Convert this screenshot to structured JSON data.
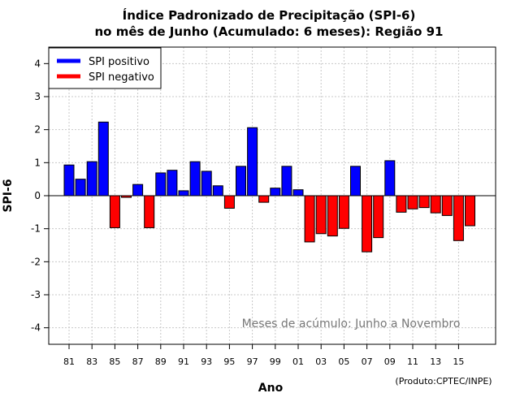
{
  "chart_data": {
    "type": "bar",
    "title_line1": "Índice Padronizado de Precipitação (SPI-6)",
    "title_line2": "no mês de Junho (Acumulado: 6 meses): Região 91",
    "xlabel": "Ano",
    "ylabel": "SPI-6",
    "ylim": [
      -4.5,
      4.5
    ],
    "yticks": [
      -4,
      -3,
      -2,
      -1,
      0,
      1,
      2,
      3,
      4
    ],
    "grid": true,
    "legend_position": "top-left",
    "legend": [
      {
        "label": "SPI positivo",
        "color": "#0000ff"
      },
      {
        "label": "SPI negativo",
        "color": "#ff0000"
      }
    ],
    "positive_color": "#0000ff",
    "negative_color": "#ff0000",
    "annotation": "Meses de acúmulo: Junho a Novembro",
    "credit": "(Produto:CPTEC/INPE)",
    "tick_labels": [
      "81",
      "83",
      "85",
      "87",
      "89",
      "91",
      "93",
      "95",
      "97",
      "99",
      "01",
      "03",
      "05",
      "07",
      "09",
      "11",
      "13",
      "15"
    ],
    "years": [
      1981,
      1982,
      1983,
      1984,
      1985,
      1986,
      1987,
      1988,
      1989,
      1990,
      1991,
      1992,
      1993,
      1994,
      1995,
      1996,
      1997,
      1998,
      1999,
      2000,
      2001,
      2002,
      2003,
      2004,
      2005,
      2006,
      2007,
      2008,
      2009,
      2010,
      2011,
      2012,
      2013,
      2014,
      2015,
      2016
    ],
    "values": [
      0.93,
      0.5,
      1.03,
      2.23,
      -0.97,
      -0.05,
      0.34,
      -0.97,
      0.69,
      0.77,
      0.15,
      1.03,
      0.74,
      0.3,
      -0.38,
      0.89,
      2.06,
      -0.2,
      0.23,
      0.89,
      0.18,
      -1.4,
      -1.15,
      -1.22,
      -0.99,
      0.89,
      -1.7,
      -1.27,
      1.06,
      -0.5,
      -0.4,
      -0.36,
      -0.52,
      -0.6,
      -1.36,
      -0.91
    ]
  }
}
